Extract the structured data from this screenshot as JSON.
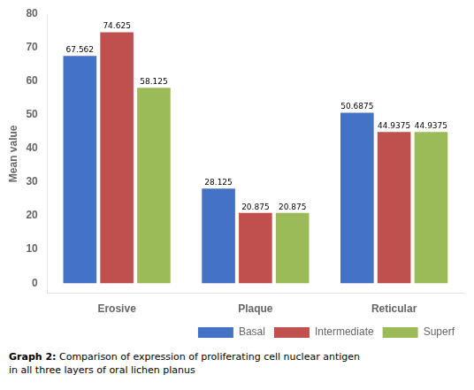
{
  "chart_data": {
    "type": "bar",
    "title": "Graph 2:",
    "subtitle": "Comparison of expression of proliferating cell nuclear antigen\nin all three layers of oral lichen planus",
    "categories": [
      "Erosive",
      "Plaque",
      "Reticular"
    ],
    "series": [
      {
        "name": "Basal",
        "color": "#4472C4",
        "values": [
          67.562,
          28.125,
          50.6875
        ]
      },
      {
        "name": "Intermediate",
        "color": "#C0504D",
        "values": [
          74.625,
          20.875,
          44.9375
        ]
      },
      {
        "name": "Superf",
        "color": "#9BBB59",
        "values": [
          58.125,
          20.875,
          44.9375
        ]
      }
    ],
    "ylabel": "Mean value",
    "ylim": [
      -3,
      80
    ],
    "yticks": [
      0,
      10,
      20,
      30,
      40,
      50,
      60,
      70,
      80
    ],
    "grid": false,
    "legend": "lower right",
    "data_labels": true
  }
}
